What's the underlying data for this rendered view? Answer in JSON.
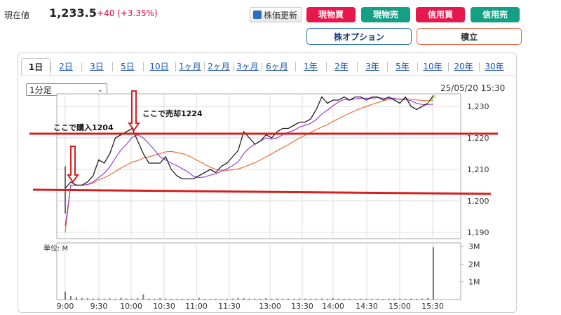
{
  "header": {
    "price_label": "現在値",
    "price_value": "1,233.5",
    "price_change": "+40 (+3.35%)"
  },
  "toolbar": {
    "refresh_label": "株価更新",
    "buttons": [
      {
        "label": "現物買",
        "color": "#e6184d"
      },
      {
        "label": "現物売",
        "color": "#15a085"
      },
      {
        "label": "信用買",
        "color": "#e6184d"
      },
      {
        "label": "信用売",
        "color": "#15a085"
      }
    ],
    "option_label": "株オプション",
    "option_color": "#2a6fbf",
    "accumulate_label": "積立",
    "accumulate_color": "#e8603c"
  },
  "tabs": [
    "1日",
    "2日",
    "3日",
    "5日",
    "10日",
    "1ヶ月",
    "2ヶ月",
    "3ヶ月",
    "6ヶ月",
    "1年",
    "2年",
    "3年",
    "5年",
    "10年",
    "20年",
    "30年"
  ],
  "interval": {
    "selected": "1分足"
  },
  "timestamp": "25/05/20 15:30",
  "chart_data": {
    "type": "line",
    "price": {
      "y_ticks": [
        "1,190",
        "1,200",
        "1,210",
        "1,220",
        "1,230"
      ],
      "ylim": [
        1188,
        1234
      ],
      "x": [
        "9:00",
        "9:05",
        "9:10",
        "9:15",
        "9:20",
        "9:25",
        "9:30",
        "9:35",
        "9:40",
        "9:45",
        "9:50",
        "9:55",
        "10:00",
        "10:05",
        "10:10",
        "10:15",
        "10:20",
        "10:25",
        "10:30",
        "10:35",
        "10:40",
        "10:45",
        "10:50",
        "10:55",
        "11:00",
        "11:05",
        "11:10",
        "11:15",
        "11:20",
        "11:25",
        "11:30",
        "12:35",
        "12:40",
        "12:45",
        "12:50",
        "12:55",
        "13:00",
        "13:05",
        "13:10",
        "13:15",
        "13:20",
        "13:25",
        "13:30",
        "13:35",
        "13:40",
        "13:45",
        "13:50",
        "13:55",
        "14:00",
        "14:05",
        "14:10",
        "14:15",
        "14:20",
        "14:25",
        "14:30",
        "14:35",
        "14:40",
        "14:45",
        "14:50",
        "14:55",
        "15:00",
        "15:05",
        "15:10",
        "15:15",
        "15:20",
        "15:25",
        "15:30"
      ],
      "close": [
        1204,
        1206,
        1205,
        1205,
        1206,
        1208,
        1213,
        1212,
        1215,
        1220,
        1221,
        1222,
        1223,
        1219,
        1215,
        1212,
        1212,
        1212,
        1214,
        1210,
        1208,
        1207,
        1207,
        1207,
        1208,
        1209,
        1210,
        1209,
        1211,
        1212,
        1214,
        1216,
        1222,
        1220,
        1218,
        1219,
        1221,
        1220,
        1222,
        1223,
        1223,
        1224,
        1225,
        1225,
        1226,
        1229,
        1233,
        1231,
        1232,
        1232,
        1233,
        1232,
        1233,
        1233,
        1232,
        1233,
        1233,
        1232,
        1233,
        1232,
        1231,
        1233,
        1230,
        1229,
        1230,
        1231,
        1233.5
      ]
    },
    "volume": {
      "unit_label": "単位: M",
      "y_ticks": [
        "1M",
        "2M",
        "3M"
      ],
      "ylim": [
        0,
        3
      ],
      "values": [
        0.45,
        0.2,
        0.15,
        0.1,
        0.08,
        0.06,
        0.06,
        0.05,
        0.07,
        0.05,
        0.1,
        0.06,
        0.05,
        0.08,
        0.3,
        0.06,
        0.05,
        0.08,
        0.05,
        0.04,
        0.04,
        0.05,
        0.04,
        0.05,
        0.1,
        0.04,
        0.04,
        0.05,
        0.04,
        0.05,
        0.06,
        0.1,
        0.08,
        0.06,
        0.05,
        0.05,
        0.08,
        0.05,
        0.06,
        0.05,
        0.05,
        0.05,
        0.06,
        0.05,
        0.05,
        0.05,
        0.06,
        0.05,
        0.08,
        0.05,
        0.05,
        0.05,
        0.04,
        0.05,
        0.05,
        0.05,
        0.05,
        0.04,
        0.05,
        0.05,
        0.06,
        0.05,
        0.06,
        0.05,
        0.06,
        0.08,
        2.95
      ]
    },
    "x_ticks": [
      "9:00",
      "9:30",
      "10:00",
      "10:30",
      "11:00",
      "11:30",
      "13:00",
      "13:30",
      "14:00",
      "14:30",
      "15:00",
      "15:30"
    ],
    "annotations": {
      "buy_text": "ここで購入1204",
      "sell_text": "ここで売却1224",
      "buy_price": 1204,
      "sell_price": 1224,
      "line_upper": 1224,
      "line_lower": 1203,
      "line_color": "#d42020"
    },
    "colors": {
      "price": "#1f1f1f",
      "ma_short": "#9b3fd0",
      "ma_long": "#e8703a",
      "latest": "#9ad24a",
      "grid": "#dcdcdc"
    }
  }
}
